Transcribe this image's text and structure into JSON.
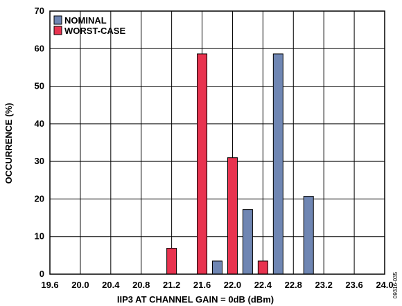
{
  "chart_data": {
    "type": "bar",
    "xlabel": "IIP3 AT CHANNEL GAIN = 0dB (dBm)",
    "ylabel": "OCCURRENCE (%)",
    "xlim": [
      19.6,
      24.0
    ],
    "ylim": [
      0,
      70
    ],
    "x_ticks": [
      19.6,
      20.0,
      20.4,
      20.8,
      21.2,
      21.6,
      22.0,
      22.4,
      22.8,
      23.2,
      23.6,
      24.0
    ],
    "x_tick_labels": [
      "19.6",
      "20.0",
      "20.4",
      "20.8",
      "21.2",
      "21.6",
      "22.0",
      "22.4",
      "22.8",
      "23.2",
      "23.6",
      "24.0"
    ],
    "y_ticks": [
      0,
      10,
      20,
      30,
      40,
      50,
      60,
      70
    ],
    "y_tick_labels": [
      "0",
      "10",
      "20",
      "30",
      "40",
      "50",
      "60",
      "70"
    ],
    "grid": true,
    "legend_position": "top-left",
    "series": [
      {
        "name": "NOMINAL",
        "color": "#6f86b3",
        "x": [
          21.8,
          22.2,
          22.6,
          23.0
        ],
        "values": [
          3.5,
          17.2,
          58.6,
          20.7
        ]
      },
      {
        "name": "WORST-CASE",
        "color": "#e8334f",
        "x": [
          21.2,
          21.6,
          22.0,
          22.4
        ],
        "values": [
          6.9,
          58.6,
          31.0,
          3.5
        ]
      }
    ]
  },
  "figure_id": "09316-035"
}
